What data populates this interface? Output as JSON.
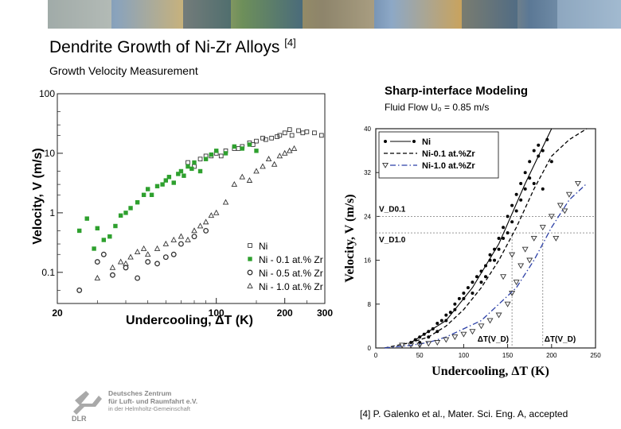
{
  "slide": {
    "title": "Dendrite Growth of Ni-Zr Alloys",
    "title_ref": "[4]",
    "subtitle": "Growth Velocity Measurement",
    "right_panel_title": "Sharp-interface Modeling",
    "right_panel_subtitle": "Fluid Flow U₀ = 0.85 m/s",
    "citation": "[4] P. Galenko et al., Mater. Sci. Eng. A, accepted",
    "logo": {
      "line1": "Deutsches Zentrum",
      "line2": "für Luft- und Raumfahrt e.V.",
      "line3": "in der Helmholtz-Gemeinschaft",
      "mark": "DLR"
    }
  },
  "chart_data": [
    {
      "type": "scatter",
      "xlabel": "Undercooling, ΔT (K)",
      "ylabel": "Velocity, V (m/s)",
      "xscale": "log",
      "yscale": "log",
      "xlim": [
        20,
        300
      ],
      "ylim": [
        0.03,
        100
      ],
      "x_ticks": [
        "20",
        "100",
        "200",
        "300"
      ],
      "y_ticks": [
        "100",
        "10",
        "1",
        "0.1"
      ],
      "legend_position": "bottom-right",
      "series": [
        {
          "name": "Ni",
          "marker": "square-open",
          "color": "#333333",
          "points": [
            [
              75,
              7
            ],
            [
              80,
              6
            ],
            [
              90,
              9
            ],
            [
              100,
              10
            ],
            [
              110,
              11
            ],
            [
              120,
              12
            ],
            [
              130,
              13
            ],
            [
              140,
              15
            ],
            [
              150,
              16
            ],
            [
              160,
              18
            ],
            [
              175,
              18
            ],
            [
              190,
              20
            ],
            [
              200,
              22
            ],
            [
              210,
              25
            ],
            [
              230,
              24
            ],
            [
              250,
              23
            ],
            [
              270,
              22
            ],
            [
              290,
              20
            ],
            [
              85,
              8
            ],
            [
              95,
              9
            ],
            [
              105,
              9
            ],
            [
              125,
              12
            ],
            [
              145,
              14
            ],
            [
              165,
              17
            ],
            [
              185,
              19
            ],
            [
              215,
              20
            ],
            [
              240,
              22
            ]
          ]
        },
        {
          "name": "Ni - 0.1 at.% Zr",
          "marker": "square-filled",
          "color": "#2ea02e",
          "points": [
            [
              25,
              0.5
            ],
            [
              27,
              0.8
            ],
            [
              29,
              0.25
            ],
            [
              30,
              0.55
            ],
            [
              32,
              0.35
            ],
            [
              34,
              0.4
            ],
            [
              36,
              0.6
            ],
            [
              38,
              0.9
            ],
            [
              40,
              1.0
            ],
            [
              42,
              1.2
            ],
            [
              45,
              1.5
            ],
            [
              48,
              2.0
            ],
            [
              50,
              2.5
            ],
            [
              52,
              2.0
            ],
            [
              55,
              2.8
            ],
            [
              58,
              3.0
            ],
            [
              60,
              3.5
            ],
            [
              62,
              4.0
            ],
            [
              65,
              3.2
            ],
            [
              68,
              4.5
            ],
            [
              70,
              5.0
            ],
            [
              72,
              4.2
            ],
            [
              75,
              6.0
            ],
            [
              78,
              5.5
            ],
            [
              80,
              7.0
            ],
            [
              85,
              5.0
            ],
            [
              90,
              8.0
            ],
            [
              95,
              9.5
            ],
            [
              100,
              11.0
            ],
            [
              110,
              10.0
            ],
            [
              120,
              13.0
            ],
            [
              130,
              12.0
            ],
            [
              140,
              14.0
            ],
            [
              150,
              11.0
            ]
          ]
        },
        {
          "name": "Ni - 0.5 at.% Zr",
          "marker": "circle-open",
          "color": "#333333",
          "points": [
            [
              25,
              0.05
            ],
            [
              30,
              0.15
            ],
            [
              32,
              0.2
            ],
            [
              35,
              0.09
            ],
            [
              40,
              0.12
            ],
            [
              45,
              0.08
            ],
            [
              50,
              0.15
            ],
            [
              55,
              0.14
            ],
            [
              60,
              0.18
            ],
            [
              65,
              0.2
            ],
            [
              70,
              0.3
            ],
            [
              80,
              0.4
            ],
            [
              90,
              0.5
            ]
          ]
        },
        {
          "name": "Ni - 1.0 at.% Zr",
          "marker": "triangle-open",
          "color": "#333333",
          "points": [
            [
              30,
              0.08
            ],
            [
              35,
              0.12
            ],
            [
              38,
              0.15
            ],
            [
              40,
              0.14
            ],
            [
              42,
              0.18
            ],
            [
              45,
              0.22
            ],
            [
              48,
              0.25
            ],
            [
              50,
              0.2
            ],
            [
              55,
              0.25
            ],
            [
              60,
              0.3
            ],
            [
              65,
              0.35
            ],
            [
              70,
              0.4
            ],
            [
              75,
              0.35
            ],
            [
              80,
              0.5
            ],
            [
              85,
              0.6
            ],
            [
              90,
              0.7
            ],
            [
              95,
              0.9
            ],
            [
              100,
              1.0
            ],
            [
              110,
              1.5
            ],
            [
              120,
              3.0
            ],
            [
              130,
              4.0
            ],
            [
              140,
              3.5
            ],
            [
              150,
              5.0
            ],
            [
              160,
              6.0
            ],
            [
              170,
              8.0
            ],
            [
              180,
              6.5
            ],
            [
              190,
              9.0
            ],
            [
              200,
              10.0
            ],
            [
              210,
              11.0
            ],
            [
              220,
              12.0
            ]
          ]
        }
      ]
    },
    {
      "type": "scatter",
      "xlabel": "Undercooling, ΔT (K)",
      "ylabel": "Velocity, V (m/s)",
      "xlim": [
        0,
        250
      ],
      "ylim": [
        0,
        40
      ],
      "x_ticks": [
        "0",
        "50",
        "100",
        "150",
        "200",
        "250"
      ],
      "y_ticks": [
        "0",
        "8",
        "16",
        "24",
        "32",
        "40"
      ],
      "legend_position": "top-left",
      "annotations": [
        {
          "text": "V_D0.1",
          "y": 24
        },
        {
          "text": "V_D1.0",
          "y": 21
        },
        {
          "text": "ΔT(V_D)",
          "x": 155
        },
        {
          "text": "ΔT(V_D)",
          "x": 190
        }
      ],
      "reference_lines": {
        "v_d_01": 24,
        "v_d_10": 21,
        "dt_01": 155,
        "dt_10": 190
      },
      "series": [
        {
          "name": "Ni",
          "kind": "points",
          "marker": "dot",
          "color": "#000000",
          "points": [
            [
              40,
              1
            ],
            [
              45,
              1.5
            ],
            [
              50,
              2
            ],
            [
              55,
              2.5
            ],
            [
              60,
              3
            ],
            [
              65,
              3.5
            ],
            [
              70,
              4.5
            ],
            [
              75,
              5
            ],
            [
              80,
              6
            ],
            [
              85,
              6.5
            ],
            [
              90,
              8
            ],
            [
              95,
              9
            ],
            [
              100,
              10
            ],
            [
              105,
              11
            ],
            [
              110,
              12
            ],
            [
              115,
              13
            ],
            [
              120,
              14
            ],
            [
              125,
              15
            ],
            [
              130,
              17
            ],
            [
              135,
              18
            ],
            [
              140,
              20
            ],
            [
              145,
              22
            ],
            [
              150,
              24
            ],
            [
              155,
              26
            ],
            [
              160,
              28
            ],
            [
              165,
              30
            ],
            [
              170,
              32
            ],
            [
              175,
              34
            ],
            [
              180,
              36
            ],
            [
              185,
              37
            ],
            [
              190,
              36
            ],
            [
              170,
              29
            ],
            [
              160,
              25
            ],
            [
              150,
              21
            ],
            [
              140,
              18
            ],
            [
              130,
              16
            ],
            [
              120,
              12
            ],
            [
              110,
              10
            ],
            [
              100,
              9
            ],
            [
              90,
              7
            ],
            [
              80,
              5
            ],
            [
              70,
              3
            ],
            [
              60,
              2
            ],
            [
              50,
              1
            ],
            [
              125,
              13
            ],
            [
              135,
              16
            ],
            [
              145,
              20
            ],
            [
              155,
              23
            ],
            [
              165,
              27
            ],
            [
              175,
              31
            ],
            [
              185,
              35
            ],
            [
              195,
              38
            ],
            [
              200,
              34
            ],
            [
              180,
              30
            ],
            [
              190,
              29
            ]
          ]
        },
        {
          "name": "Ni-0.1 at.%Zr",
          "kind": "line",
          "style": "dashed",
          "color": "#000000",
          "x": [
            10,
            40,
            60,
            80,
            100,
            120,
            140,
            160,
            180,
            200,
            220,
            240
          ],
          "values": [
            0,
            1,
            2,
            4,
            7,
            11,
            16,
            22,
            29,
            35,
            38,
            40
          ]
        },
        {
          "name": "Ni-1.0 at.%Zr",
          "kind": "line",
          "style": "dash-dot",
          "color": "#2b3fa6",
          "x": [
            10,
            40,
            60,
            80,
            100,
            120,
            140,
            160,
            180,
            200,
            220,
            240
          ],
          "values": [
            0,
            0.5,
            1,
            2,
            3.5,
            5,
            8,
            11,
            16,
            22,
            27,
            30
          ]
        },
        {
          "name": "",
          "kind": "points",
          "marker": "triangle-down-open",
          "color": "#333333",
          "points": [
            [
              30,
              0.5
            ],
            [
              40,
              0.5
            ],
            [
              50,
              0.5
            ],
            [
              60,
              0.8
            ],
            [
              70,
              1
            ],
            [
              80,
              1.5
            ],
            [
              90,
              2
            ],
            [
              100,
              2.5
            ],
            [
              110,
              3
            ],
            [
              120,
              4
            ],
            [
              130,
              5
            ],
            [
              140,
              6
            ],
            [
              150,
              8
            ],
            [
              155,
              10
            ],
            [
              160,
              12
            ],
            [
              165,
              15
            ],
            [
              170,
              18
            ],
            [
              180,
              20
            ],
            [
              190,
              22
            ],
            [
              200,
              24
            ],
            [
              210,
              26
            ],
            [
              220,
              28
            ],
            [
              230,
              30
            ],
            [
              145,
              13
            ],
            [
              155,
              17
            ],
            [
              175,
              16
            ],
            [
              205,
              20
            ],
            [
              215,
              25
            ]
          ]
        }
      ]
    }
  ]
}
